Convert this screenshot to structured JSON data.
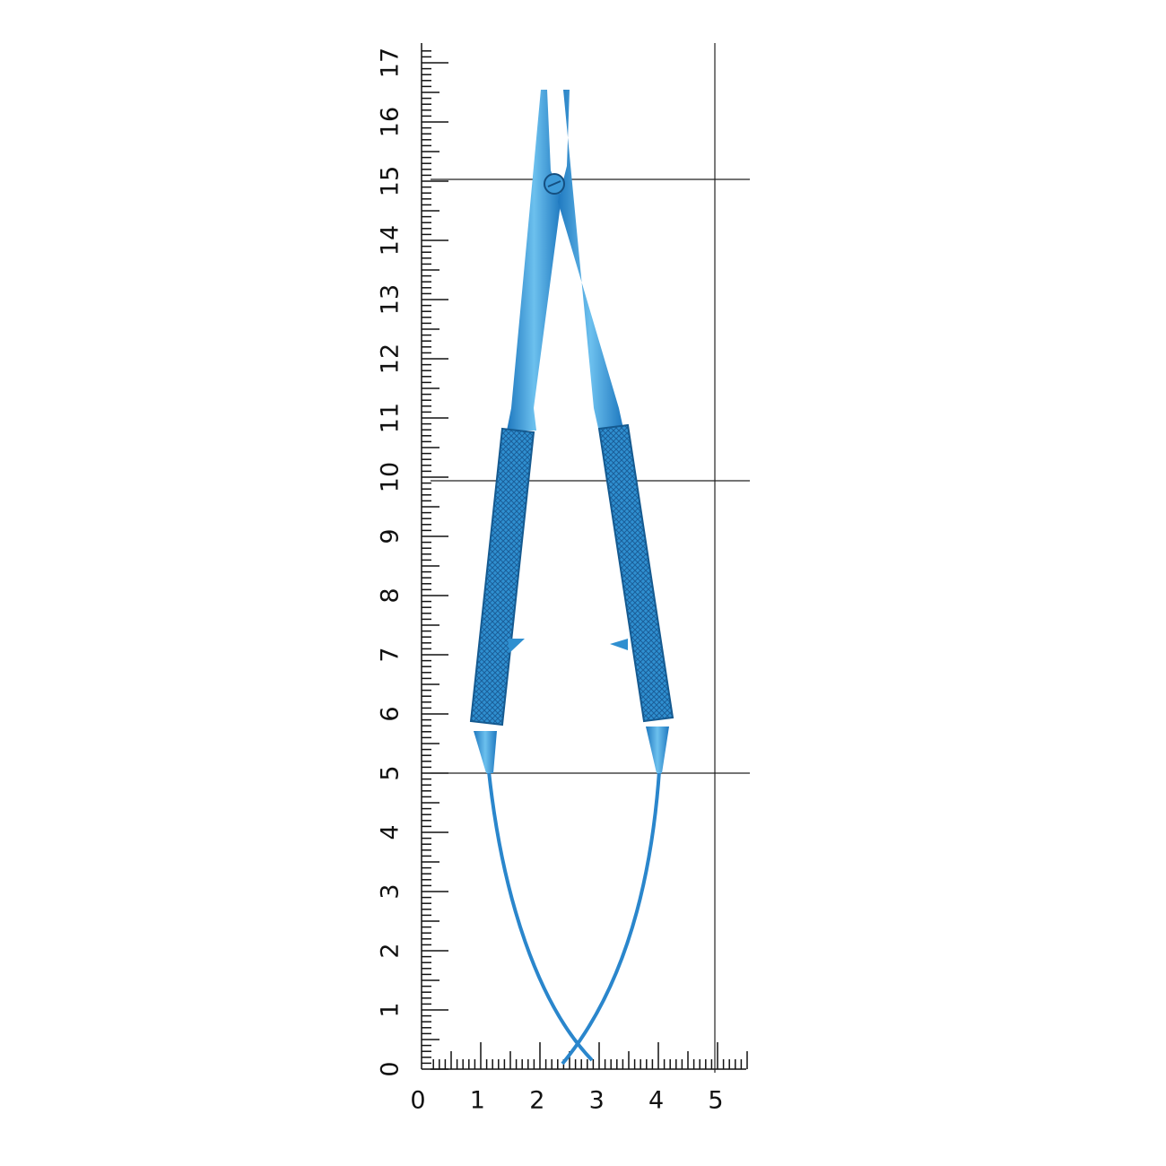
{
  "vertical_scale": {
    "labels": [
      "0",
      "1",
      "2",
      "3",
      "4",
      "5",
      "6",
      "7",
      "8",
      "9",
      "10",
      "11",
      "12",
      "13",
      "14",
      "15",
      "16",
      "17"
    ]
  },
  "horizontal_scale": {
    "labels": [
      "0",
      "1",
      "2",
      "3",
      "4",
      "5"
    ]
  }
}
